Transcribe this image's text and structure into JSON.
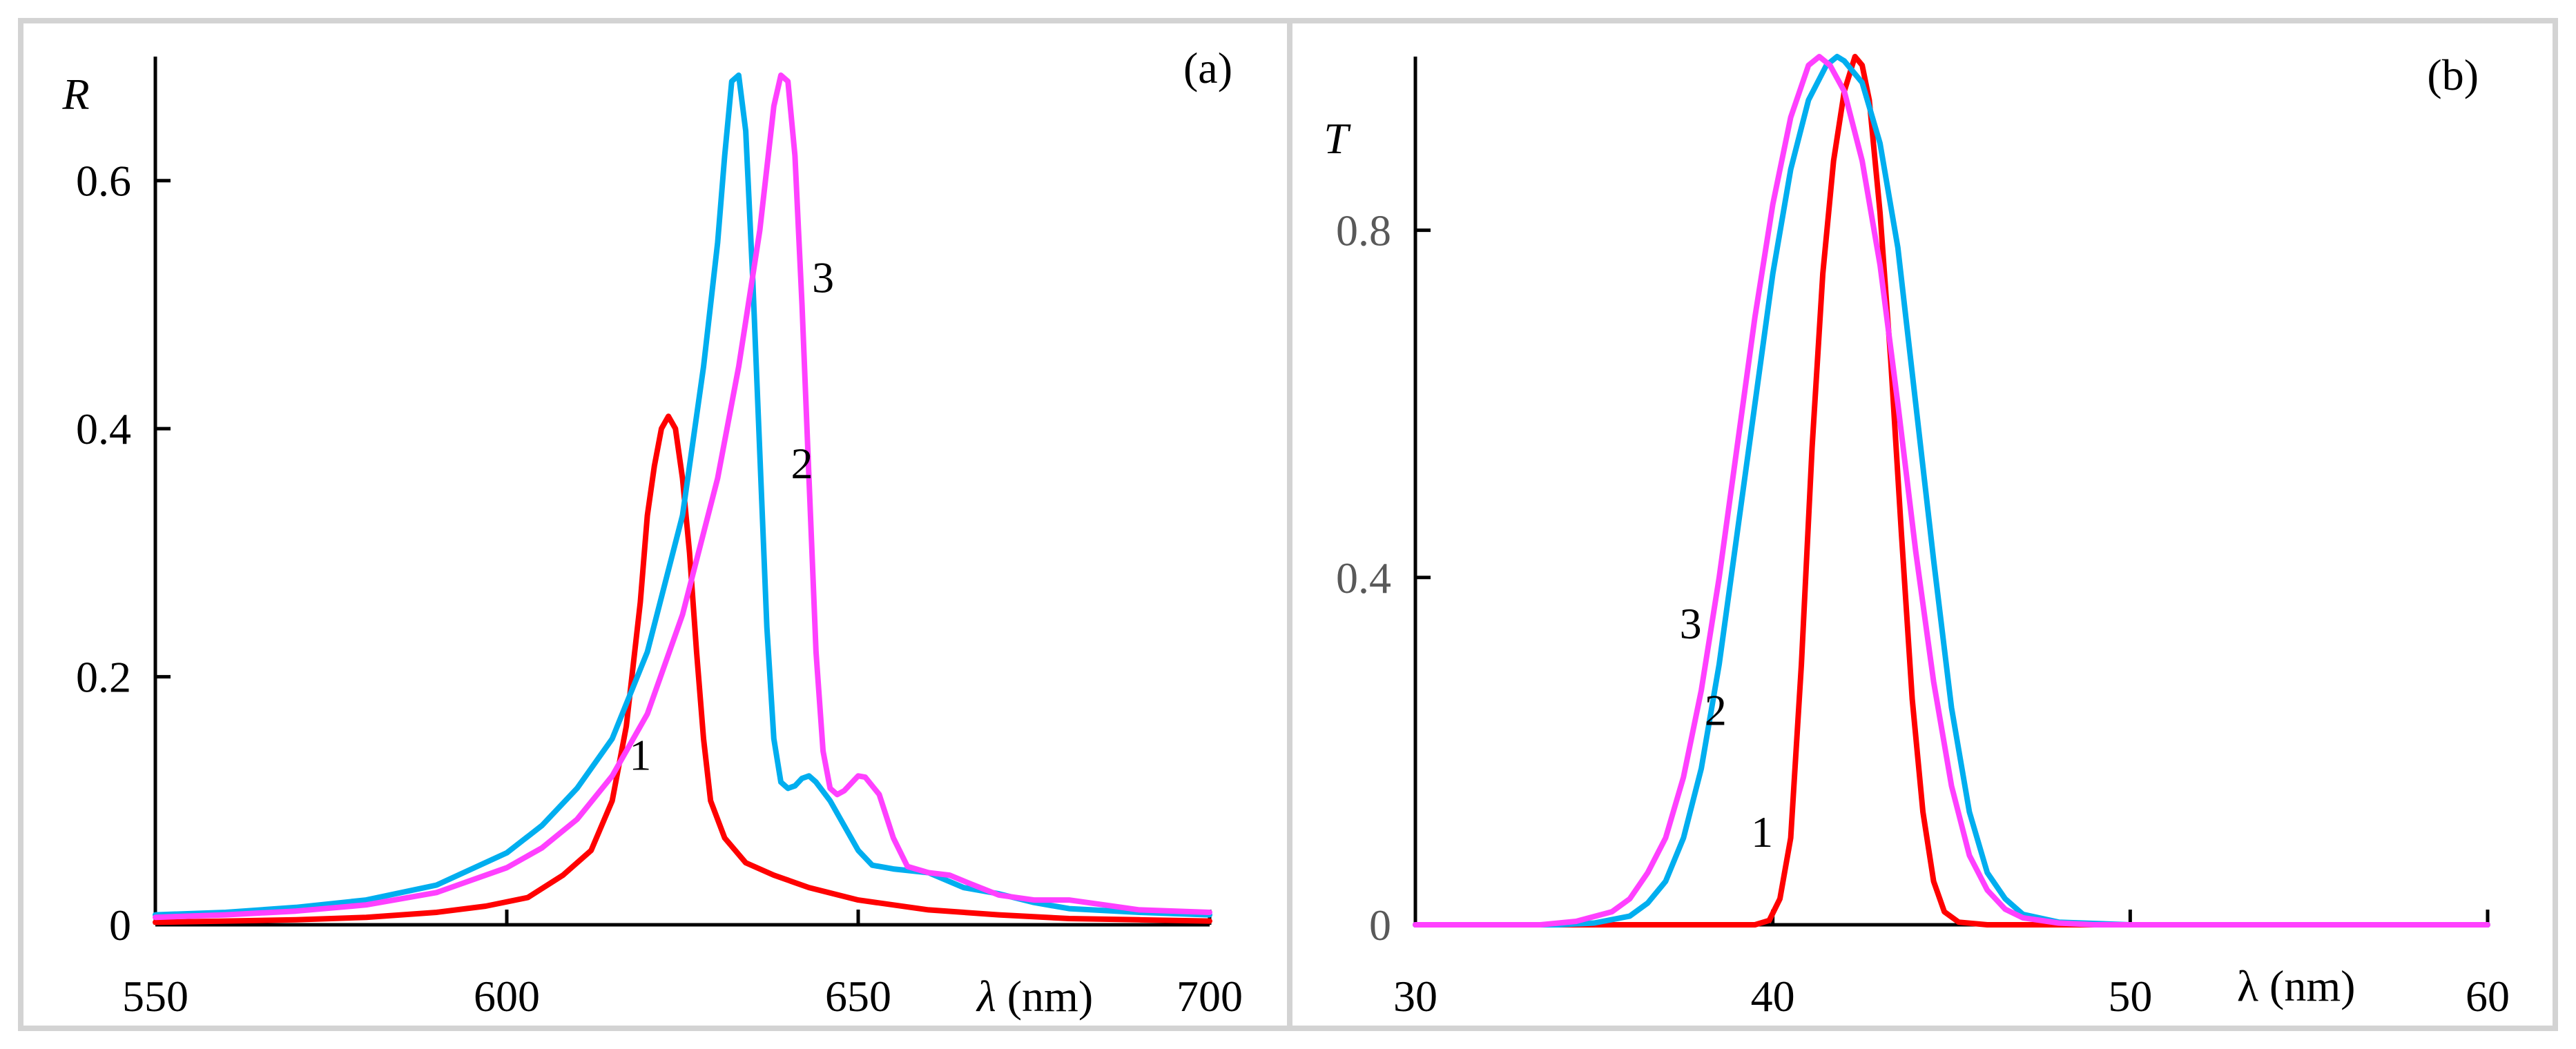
{
  "chart_data": [
    {
      "type": "line",
      "panel_label": "(a)",
      "ylabel": "R",
      "xlabel_symbol": "λ",
      "xlabel_unit": "(nm)",
      "xlim": [
        550,
        700
      ],
      "ylim": [
        0,
        0.7
      ],
      "xticks": [
        550,
        600,
        650,
        700
      ],
      "xtick_labels": [
        "550",
        "600",
        "650",
        "700"
      ],
      "yticks": [
        0,
        0.2,
        0.4,
        0.6
      ],
      "ytick_labels": [
        "0",
        "0.2",
        "0.4",
        "0.6"
      ],
      "series": [
        {
          "name": "1",
          "color": "#ff0000",
          "label_at": [
            619,
            0.125
          ],
          "points": [
            [
              550,
              0.002
            ],
            [
              560,
              0.003
            ],
            [
              570,
              0.004
            ],
            [
              580,
              0.006
            ],
            [
              590,
              0.01
            ],
            [
              597,
              0.015
            ],
            [
              603,
              0.022
            ],
            [
              608,
              0.04
            ],
            [
              612,
              0.06
            ],
            [
              615,
              0.1
            ],
            [
              617,
              0.16
            ],
            [
              619,
              0.26
            ],
            [
              620,
              0.33
            ],
            [
              621,
              0.37
            ],
            [
              622,
              0.4
            ],
            [
              623,
              0.41
            ],
            [
              624,
              0.4
            ],
            [
              625,
              0.36
            ],
            [
              626,
              0.3
            ],
            [
              627,
              0.22
            ],
            [
              628,
              0.15
            ],
            [
              629,
              0.1
            ],
            [
              631,
              0.07
            ],
            [
              634,
              0.05
            ],
            [
              638,
              0.04
            ],
            [
              643,
              0.03
            ],
            [
              650,
              0.02
            ],
            [
              660,
              0.012
            ],
            [
              670,
              0.008
            ],
            [
              680,
              0.005
            ],
            [
              690,
              0.004
            ],
            [
              700,
              0.003
            ]
          ]
        },
        {
          "name": "2",
          "color": "#00aeef",
          "label_at": [
            642,
            0.36
          ],
          "points": [
            [
              550,
              0.008
            ],
            [
              560,
              0.01
            ],
            [
              570,
              0.014
            ],
            [
              580,
              0.02
            ],
            [
              590,
              0.032
            ],
            [
              600,
              0.058
            ],
            [
              605,
              0.08
            ],
            [
              610,
              0.11
            ],
            [
              615,
              0.15
            ],
            [
              620,
              0.22
            ],
            [
              625,
              0.33
            ],
            [
              628,
              0.45
            ],
            [
              630,
              0.55
            ],
            [
              631,
              0.62
            ],
            [
              632,
              0.68
            ],
            [
              633,
              0.685
            ],
            [
              634,
              0.64
            ],
            [
              635,
              0.52
            ],
            [
              636,
              0.38
            ],
            [
              637,
              0.24
            ],
            [
              638,
              0.15
            ],
            [
              639,
              0.115
            ],
            [
              640,
              0.11
            ],
            [
              641,
              0.112
            ],
            [
              642,
              0.118
            ],
            [
              643,
              0.12
            ],
            [
              644,
              0.115
            ],
            [
              646,
              0.1
            ],
            [
              648,
              0.08
            ],
            [
              650,
              0.06
            ],
            [
              652,
              0.048
            ],
            [
              655,
              0.045
            ],
            [
              660,
              0.042
            ],
            [
              665,
              0.03
            ],
            [
              670,
              0.025
            ],
            [
              675,
              0.018
            ],
            [
              680,
              0.013
            ],
            [
              690,
              0.01
            ],
            [
              700,
              0.008
            ]
          ]
        },
        {
          "name": "3",
          "color": "#ff40ff",
          "label_at": [
            645,
            0.51
          ],
          "points": [
            [
              550,
              0.006
            ],
            [
              560,
              0.008
            ],
            [
              570,
              0.011
            ],
            [
              580,
              0.016
            ],
            [
              590,
              0.026
            ],
            [
              600,
              0.046
            ],
            [
              605,
              0.062
            ],
            [
              610,
              0.085
            ],
            [
              615,
              0.12
            ],
            [
              620,
              0.17
            ],
            [
              625,
              0.25
            ],
            [
              630,
              0.36
            ],
            [
              633,
              0.45
            ],
            [
              636,
              0.56
            ],
            [
              638,
              0.66
            ],
            [
              639,
              0.685
            ],
            [
              640,
              0.68
            ],
            [
              641,
              0.62
            ],
            [
              642,
              0.5
            ],
            [
              643,
              0.36
            ],
            [
              644,
              0.22
            ],
            [
              645,
              0.14
            ],
            [
              646,
              0.11
            ],
            [
              647,
              0.105
            ],
            [
              648,
              0.108
            ],
            [
              650,
              0.12
            ],
            [
              651,
              0.119
            ],
            [
              653,
              0.105
            ],
            [
              655,
              0.07
            ],
            [
              657,
              0.047
            ],
            [
              660,
              0.042
            ],
            [
              663,
              0.04
            ],
            [
              666,
              0.033
            ],
            [
              670,
              0.024
            ],
            [
              675,
              0.02
            ],
            [
              680,
              0.02
            ],
            [
              685,
              0.016
            ],
            [
              690,
              0.012
            ],
            [
              700,
              0.01
            ]
          ]
        }
      ]
    },
    {
      "type": "line",
      "panel_label": "(b)",
      "ylabel": "T",
      "xlabel_symbol": "λ",
      "xlabel_unit": "(nm)",
      "xlim": [
        30,
        60
      ],
      "ylim": [
        0,
        1.0
      ],
      "xticks": [
        30,
        40,
        50,
        60
      ],
      "xtick_labels": [
        "30",
        "40",
        "50",
        "60"
      ],
      "yticks": [
        0,
        0.4,
        0.8
      ],
      "ytick_labels": [
        "0",
        "0.4",
        "0.8"
      ],
      "series": [
        {
          "name": "1",
          "color": "#ff0000",
          "label_at": [
            39.7,
            0.09
          ],
          "points": [
            [
              30,
              0
            ],
            [
              38,
              0
            ],
            [
              39.5,
              0
            ],
            [
              39.9,
              0.005
            ],
            [
              40.2,
              0.03
            ],
            [
              40.5,
              0.1
            ],
            [
              40.8,
              0.3
            ],
            [
              41.1,
              0.55
            ],
            [
              41.4,
              0.75
            ],
            [
              41.7,
              0.88
            ],
            [
              42.0,
              0.96
            ],
            [
              42.3,
              1.0
            ],
            [
              42.5,
              0.99
            ],
            [
              42.7,
              0.95
            ],
            [
              43.0,
              0.82
            ],
            [
              43.3,
              0.65
            ],
            [
              43.6,
              0.45
            ],
            [
              43.9,
              0.26
            ],
            [
              44.2,
              0.13
            ],
            [
              44.5,
              0.05
            ],
            [
              44.8,
              0.015
            ],
            [
              45.2,
              0.003
            ],
            [
              46,
              0
            ],
            [
              60,
              0
            ]
          ]
        },
        {
          "name": "2",
          "color": "#00aeef",
          "label_at": [
            38.4,
            0.23
          ],
          "points": [
            [
              30,
              0
            ],
            [
              34,
              0
            ],
            [
              35,
              0.002
            ],
            [
              36,
              0.01
            ],
            [
              36.5,
              0.025
            ],
            [
              37,
              0.05
            ],
            [
              37.5,
              0.1
            ],
            [
              38,
              0.18
            ],
            [
              38.5,
              0.3
            ],
            [
              39,
              0.45
            ],
            [
              39.5,
              0.6
            ],
            [
              40,
              0.75
            ],
            [
              40.5,
              0.87
            ],
            [
              41,
              0.95
            ],
            [
              41.5,
              0.99
            ],
            [
              41.8,
              1.0
            ],
            [
              42,
              0.995
            ],
            [
              42.5,
              0.97
            ],
            [
              43,
              0.9
            ],
            [
              43.5,
              0.78
            ],
            [
              44,
              0.6
            ],
            [
              44.5,
              0.42
            ],
            [
              45,
              0.25
            ],
            [
              45.5,
              0.13
            ],
            [
              46,
              0.06
            ],
            [
              46.5,
              0.03
            ],
            [
              47,
              0.012
            ],
            [
              48,
              0.003
            ],
            [
              50,
              0
            ],
            [
              60,
              0
            ]
          ]
        },
        {
          "name": "3",
          "color": "#ff40ff",
          "label_at": [
            37.7,
            0.33
          ],
          "points": [
            [
              30,
              0
            ],
            [
              33.5,
              0
            ],
            [
              34.5,
              0.004
            ],
            [
              35.5,
              0.015
            ],
            [
              36,
              0.03
            ],
            [
              36.5,
              0.06
            ],
            [
              37,
              0.1
            ],
            [
              37.5,
              0.17
            ],
            [
              38,
              0.27
            ],
            [
              38.5,
              0.4
            ],
            [
              39,
              0.55
            ],
            [
              39.5,
              0.7
            ],
            [
              40,
              0.83
            ],
            [
              40.5,
              0.93
            ],
            [
              41,
              0.99
            ],
            [
              41.3,
              1.0
            ],
            [
              41.6,
              0.99
            ],
            [
              42,
              0.96
            ],
            [
              42.5,
              0.88
            ],
            [
              43,
              0.76
            ],
            [
              43.5,
              0.6
            ],
            [
              44,
              0.43
            ],
            [
              44.5,
              0.28
            ],
            [
              45,
              0.16
            ],
            [
              45.5,
              0.08
            ],
            [
              46,
              0.04
            ],
            [
              46.5,
              0.018
            ],
            [
              47,
              0.008
            ],
            [
              48,
              0.002
            ],
            [
              49,
              0
            ],
            [
              60,
              0
            ]
          ]
        }
      ]
    }
  ]
}
